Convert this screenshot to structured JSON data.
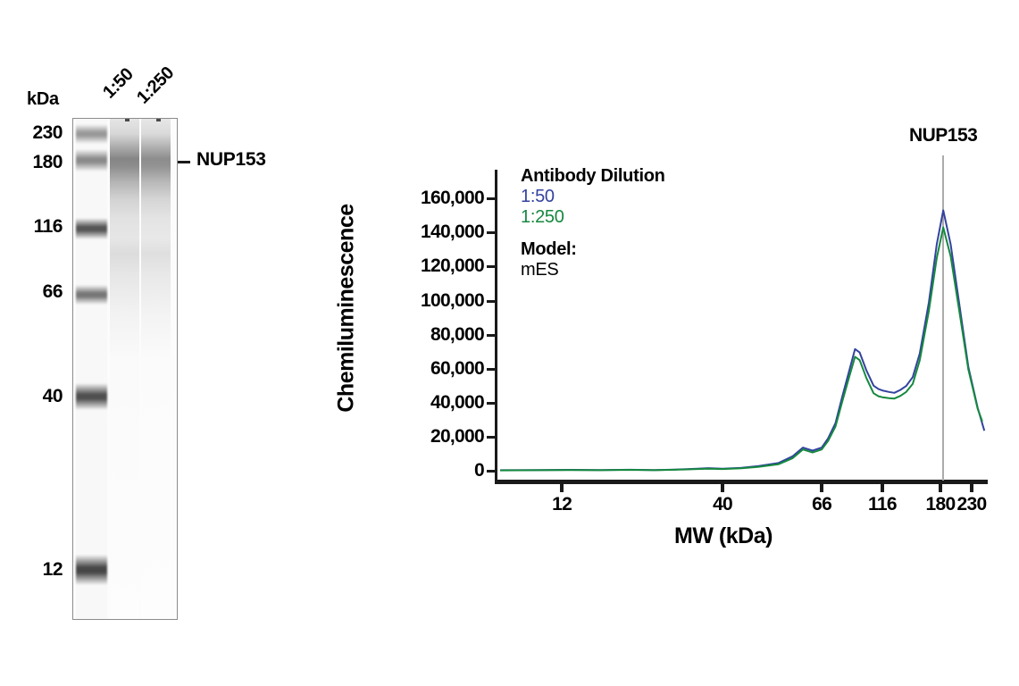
{
  "blot": {
    "kda_label": "kDa",
    "lane_labels": [
      "1:50",
      "1:250"
    ],
    "mw_markers": [
      "230",
      "180",
      "116",
      "66",
      "40",
      "12"
    ],
    "band_label": "NUP153"
  },
  "chart_data": {
    "type": "line",
    "title": "",
    "xlabel": "MW (kDa)",
    "ylabel": "Chemiluminescence",
    "x_ticks": [
      12,
      40,
      66,
      116,
      180,
      230
    ],
    "x_tick_labels": [
      "12",
      "40",
      "66",
      "116",
      "180",
      "230"
    ],
    "y_ticks": [
      0,
      20000,
      40000,
      60000,
      80000,
      100000,
      120000,
      140000,
      160000
    ],
    "y_tick_labels": [
      "0",
      "20,000",
      "40,000",
      "60,000",
      "80,000",
      "100,000",
      "120,000",
      "140,000",
      "160,000"
    ],
    "ylim": [
      0,
      177000
    ],
    "grid": false,
    "x_axis_note": "nonlinear capillary-electrophoresis MW axis",
    "x_axis_anchors": [
      [
        7.4,
        0.0
      ],
      [
        12,
        0.13
      ],
      [
        40,
        0.459
      ],
      [
        66,
        0.662
      ],
      [
        116,
        0.786
      ],
      [
        180,
        0.905
      ],
      [
        230,
        0.969
      ],
      [
        259,
        1.0
      ]
    ],
    "legend": {
      "title": "Antibody Dilution",
      "position": "top-left",
      "entries": [
        {
          "label": "1:50",
          "color": "#33439E"
        },
        {
          "label": "1:250",
          "color": "#15893E"
        }
      ],
      "model_label": "Model:",
      "model_value": "mES"
    },
    "annotation": {
      "label": "NUP153",
      "mw": 184
    },
    "series": [
      {
        "name": "1:50",
        "color": "#33439E",
        "points": [
          [
            7.5,
            300
          ],
          [
            10,
            400
          ],
          [
            13,
            500
          ],
          [
            16,
            400
          ],
          [
            20,
            600
          ],
          [
            24,
            400
          ],
          [
            28,
            700
          ],
          [
            33,
            1200
          ],
          [
            36,
            1500
          ],
          [
            40,
            1200
          ],
          [
            44,
            1700
          ],
          [
            48,
            2800
          ],
          [
            53,
            4500
          ],
          [
            57,
            8500
          ],
          [
            60,
            13600
          ],
          [
            63,
            11800
          ],
          [
            66,
            13600
          ],
          [
            70,
            19000
          ],
          [
            75,
            28000
          ],
          [
            80,
            44000
          ],
          [
            85,
            58000
          ],
          [
            90,
            71500
          ],
          [
            94,
            69500
          ],
          [
            100,
            59000
          ],
          [
            107,
            50000
          ],
          [
            112,
            48000
          ],
          [
            116,
            47200
          ],
          [
            122,
            46300
          ],
          [
            127,
            45800
          ],
          [
            133,
            47500
          ],
          [
            139,
            49800
          ],
          [
            146,
            55000
          ],
          [
            154,
            69000
          ],
          [
            165,
            99000
          ],
          [
            175,
            133000
          ],
          [
            184,
            153000
          ],
          [
            195,
            133000
          ],
          [
            209,
            97000
          ],
          [
            224,
            61000
          ],
          [
            241,
            37000
          ],
          [
            254,
            23500
          ]
        ]
      },
      {
        "name": "1:250",
        "color": "#15893E",
        "points": [
          [
            7.5,
            200
          ],
          [
            10,
            300
          ],
          [
            13,
            400
          ],
          [
            16,
            300
          ],
          [
            20,
            500
          ],
          [
            24,
            300
          ],
          [
            28,
            600
          ],
          [
            33,
            1000
          ],
          [
            36,
            1200
          ],
          [
            40,
            1000
          ],
          [
            44,
            1400
          ],
          [
            48,
            2300
          ],
          [
            53,
            3800
          ],
          [
            57,
            7400
          ],
          [
            60,
            12500
          ],
          [
            63,
            10700
          ],
          [
            66,
            12500
          ],
          [
            70,
            17500
          ],
          [
            75,
            26000
          ],
          [
            80,
            41000
          ],
          [
            85,
            54500
          ],
          [
            90,
            67000
          ],
          [
            94,
            65000
          ],
          [
            100,
            54500
          ],
          [
            107,
            45500
          ],
          [
            112,
            43800
          ],
          [
            116,
            43200
          ],
          [
            122,
            42600
          ],
          [
            127,
            42400
          ],
          [
            133,
            44000
          ],
          [
            139,
            46300
          ],
          [
            146,
            51000
          ],
          [
            154,
            65000
          ],
          [
            165,
            94000
          ],
          [
            175,
            125000
          ],
          [
            184,
            143000
          ],
          [
            195,
            126000
          ],
          [
            209,
            93000
          ],
          [
            224,
            59500
          ],
          [
            241,
            36500
          ],
          [
            250,
            29000
          ]
        ]
      }
    ]
  }
}
